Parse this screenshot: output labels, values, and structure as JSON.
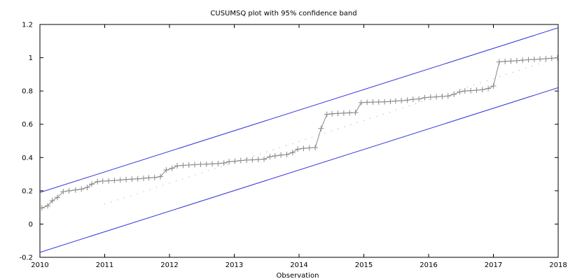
{
  "chart_data": {
    "type": "line",
    "title": "CUSUMSQ plot with 95% confidence band",
    "xlabel": "Observation",
    "ylabel": "",
    "xlim": [
      2010,
      2018
    ],
    "ylim": [
      -0.2,
      1.2
    ],
    "x_ticks": [
      "2010",
      "2011",
      "2012",
      "2013",
      "2014",
      "2015",
      "2016",
      "2017",
      "2018"
    ],
    "y_ticks": [
      "-0.2",
      "0",
      "0.2",
      "0.4",
      "0.6",
      "0.8",
      "1",
      "1.2"
    ],
    "grid": false,
    "legend": "none",
    "colors": {
      "cusumsq": "#888888",
      "band": "#3333dd",
      "reference": "#aaaaaa",
      "axes": "#000000"
    },
    "series": [
      {
        "role": "cusumsq",
        "style": "line-with-plus-markers",
        "points": [
          [
            2010.03,
            0.097
          ],
          [
            2010.12,
            0.11
          ],
          [
            2010.19,
            0.14
          ],
          [
            2010.27,
            0.16
          ],
          [
            2010.36,
            0.195
          ],
          [
            2010.45,
            0.2
          ],
          [
            2010.55,
            0.205
          ],
          [
            2010.64,
            0.21
          ],
          [
            2010.73,
            0.22
          ],
          [
            2010.8,
            0.24
          ],
          [
            2010.89,
            0.255
          ],
          [
            2010.97,
            0.258
          ],
          [
            2011.06,
            0.26
          ],
          [
            2011.15,
            0.262
          ],
          [
            2011.24,
            0.265
          ],
          [
            2011.33,
            0.268
          ],
          [
            2011.42,
            0.27
          ],
          [
            2011.51,
            0.272
          ],
          [
            2011.6,
            0.275
          ],
          [
            2011.68,
            0.278
          ],
          [
            2011.77,
            0.28
          ],
          [
            2011.86,
            0.285
          ],
          [
            2011.95,
            0.325
          ],
          [
            2012.04,
            0.335
          ],
          [
            2012.12,
            0.35
          ],
          [
            2012.21,
            0.353
          ],
          [
            2012.3,
            0.355
          ],
          [
            2012.39,
            0.357
          ],
          [
            2012.48,
            0.359
          ],
          [
            2012.57,
            0.36
          ],
          [
            2012.66,
            0.362
          ],
          [
            2012.75,
            0.364
          ],
          [
            2012.84,
            0.367
          ],
          [
            2012.92,
            0.375
          ],
          [
            2013.01,
            0.378
          ],
          [
            2013.1,
            0.382
          ],
          [
            2013.19,
            0.385
          ],
          [
            2013.28,
            0.386
          ],
          [
            2013.37,
            0.388
          ],
          [
            2013.46,
            0.39
          ],
          [
            2013.55,
            0.405
          ],
          [
            2013.63,
            0.41
          ],
          [
            2013.72,
            0.415
          ],
          [
            2013.81,
            0.418
          ],
          [
            2013.9,
            0.43
          ],
          [
            2013.98,
            0.45
          ],
          [
            2014.07,
            0.455
          ],
          [
            2014.16,
            0.458
          ],
          [
            2014.25,
            0.46
          ],
          [
            2014.34,
            0.575
          ],
          [
            2014.43,
            0.66
          ],
          [
            2014.51,
            0.663
          ],
          [
            2014.6,
            0.665
          ],
          [
            2014.69,
            0.667
          ],
          [
            2014.78,
            0.669
          ],
          [
            2014.87,
            0.67
          ],
          [
            2014.96,
            0.73
          ],
          [
            2015.05,
            0.732
          ],
          [
            2015.14,
            0.733
          ],
          [
            2015.23,
            0.734
          ],
          [
            2015.32,
            0.735
          ],
          [
            2015.41,
            0.737
          ],
          [
            2015.49,
            0.74
          ],
          [
            2015.58,
            0.742
          ],
          [
            2015.67,
            0.745
          ],
          [
            2015.76,
            0.75
          ],
          [
            2015.85,
            0.752
          ],
          [
            2015.94,
            0.76
          ],
          [
            2016.03,
            0.763
          ],
          [
            2016.12,
            0.765
          ],
          [
            2016.21,
            0.767
          ],
          [
            2016.3,
            0.77
          ],
          [
            2016.39,
            0.78
          ],
          [
            2016.48,
            0.795
          ],
          [
            2016.56,
            0.8
          ],
          [
            2016.65,
            0.802
          ],
          [
            2016.74,
            0.805
          ],
          [
            2016.83,
            0.808
          ],
          [
            2016.92,
            0.815
          ],
          [
            2017.0,
            0.83
          ],
          [
            2017.09,
            0.975
          ],
          [
            2017.18,
            0.978
          ],
          [
            2017.27,
            0.98
          ],
          [
            2017.36,
            0.982
          ],
          [
            2017.45,
            0.985
          ],
          [
            2017.54,
            0.988
          ],
          [
            2017.63,
            0.99
          ],
          [
            2017.72,
            0.992
          ],
          [
            2017.81,
            0.994
          ],
          [
            2017.9,
            0.997
          ],
          [
            2017.99,
            1.0
          ]
        ]
      },
      {
        "role": "upper-band",
        "style": "line",
        "points": [
          [
            2010,
            0.19
          ],
          [
            2018,
            1.18
          ]
        ]
      },
      {
        "role": "lower-band",
        "style": "line",
        "points": [
          [
            2010,
            -0.17
          ],
          [
            2018,
            0.82
          ]
        ]
      },
      {
        "role": "reference",
        "style": "dotted",
        "points": [
          [
            2011.0,
            0.12
          ],
          [
            2018.0,
            1.0
          ]
        ]
      }
    ]
  }
}
